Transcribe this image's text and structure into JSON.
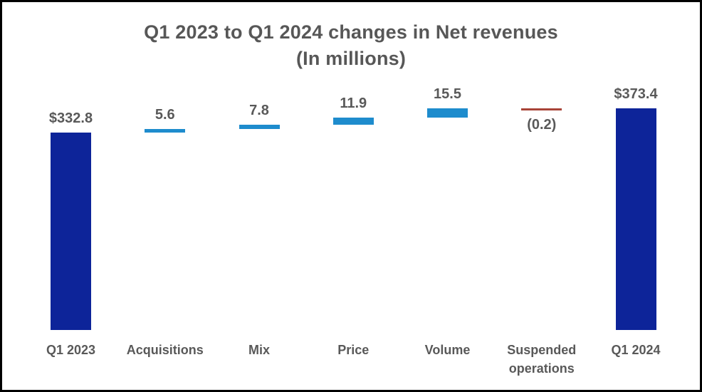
{
  "title": {
    "line1": "Q1 2023 to Q1 2024 changes in Net revenues",
    "line2": "(In millions)"
  },
  "colors": {
    "total_bar": "#0D2499",
    "increase_bar": "#1E8CCD",
    "decrease_bar": "#A84438",
    "label_text": "#595959"
  },
  "chart_data": {
    "type": "bar",
    "subtype": "waterfall",
    "title": "Q1 2023 to Q1 2024 changes in Net revenues",
    "subtitle": "(In millions)",
    "categories": [
      "Q1 2023",
      "Acquisitions",
      "Mix",
      "Price",
      "Volume",
      "Suspended operations",
      "Q1 2024"
    ],
    "columns": [
      {
        "category": "Q1 2023",
        "value": 332.8,
        "display": "$332.8",
        "kind": "total",
        "label_pos": "above"
      },
      {
        "category": "Acquisitions",
        "value": 5.6,
        "display": "5.6",
        "kind": "increase",
        "label_pos": "above"
      },
      {
        "category": "Mix",
        "value": 7.8,
        "display": "7.8",
        "kind": "increase",
        "label_pos": "above"
      },
      {
        "category": "Price",
        "value": 11.9,
        "display": "11.9",
        "kind": "increase",
        "label_pos": "above"
      },
      {
        "category": "Volume",
        "value": 15.5,
        "display": "15.5",
        "kind": "increase",
        "label_pos": "above"
      },
      {
        "category": "Suspended operations",
        "value": -0.2,
        "display": "(0.2)",
        "kind": "decrease",
        "label_pos": "below"
      },
      {
        "category": "Q1 2024",
        "value": 373.4,
        "display": "$373.4",
        "kind": "total",
        "label_pos": "above"
      }
    ],
    "start_total": 332.8,
    "end_total": 373.4,
    "ylim": [
      0,
      373.6
    ],
    "grid": false,
    "legend": false
  }
}
